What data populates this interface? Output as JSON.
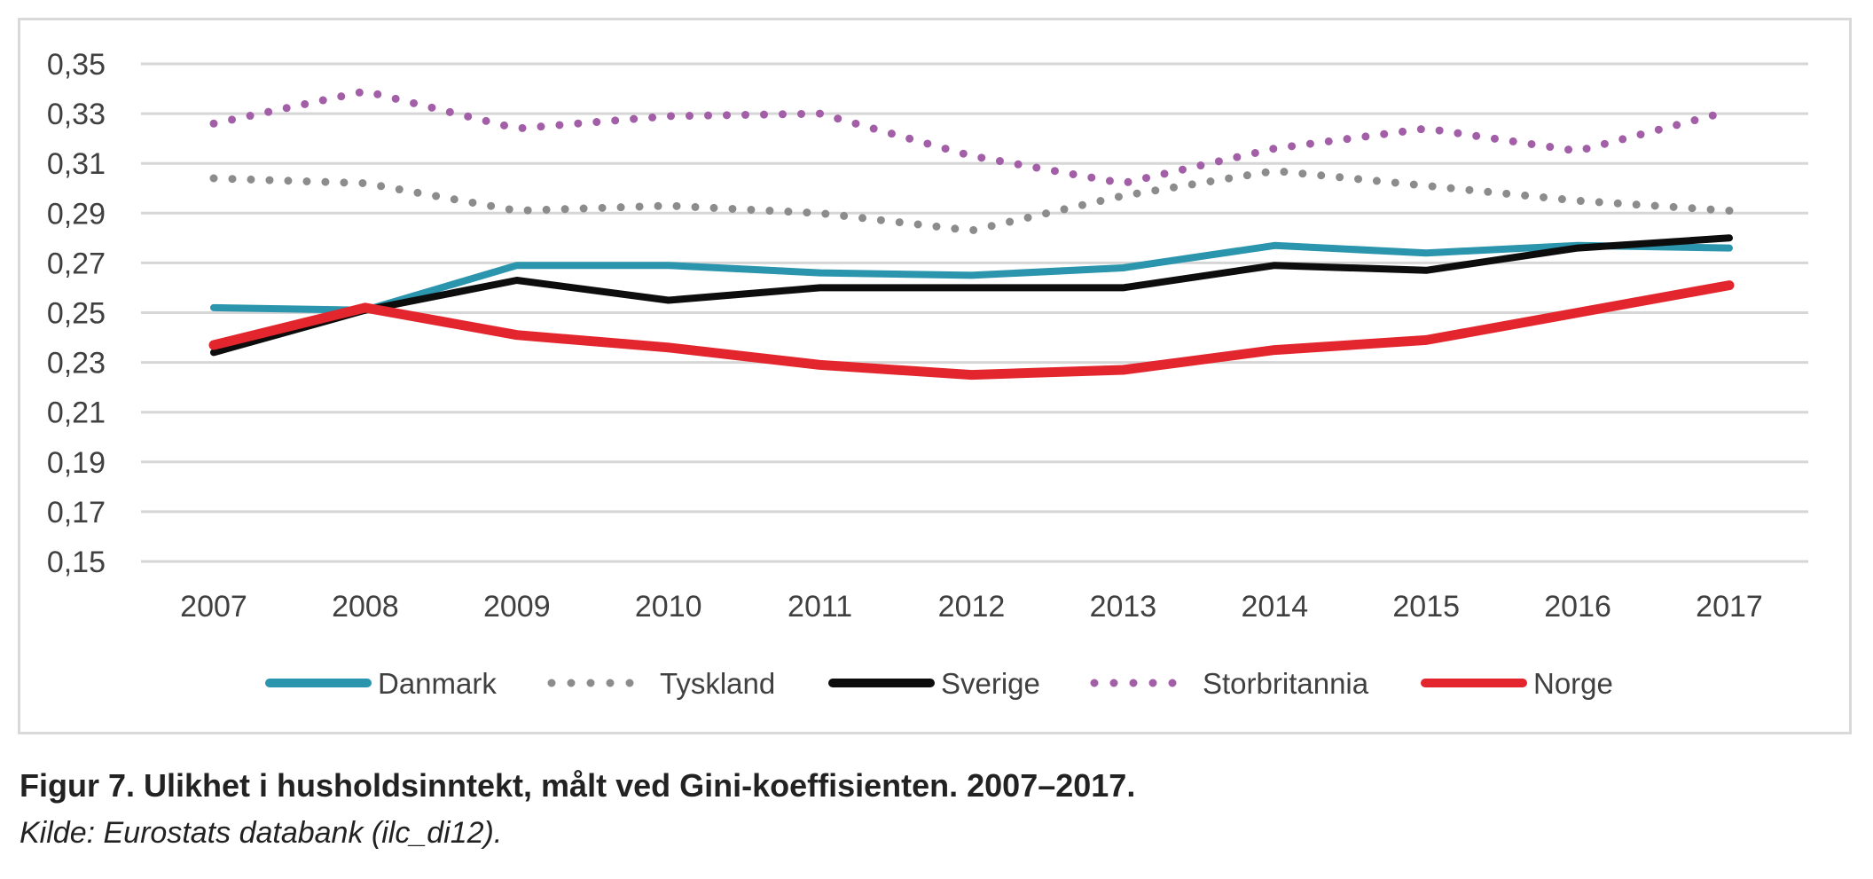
{
  "caption": {
    "title": "Figur 7. Ulikhet i husholdsinntekt, målt ved Gini-koeffisienten. 2007–2017.",
    "source": "Kilde: Eurostats databank (ilc_di12)."
  },
  "chart_data": {
    "type": "line",
    "title": "",
    "xlabel": "",
    "ylabel": "",
    "x": [
      "2007",
      "2008",
      "2009",
      "2010",
      "2011",
      "2012",
      "2013",
      "2014",
      "2015",
      "2016",
      "2017"
    ],
    "ylim": [
      0.15,
      0.35
    ],
    "yticks": [
      0.35,
      0.33,
      0.31,
      0.29,
      0.27,
      0.25,
      0.23,
      0.21,
      0.19,
      0.17,
      0.15
    ],
    "ytick_labels": [
      "0,35",
      "0,33",
      "0,31",
      "0,29",
      "0,27",
      "0,25",
      "0,23",
      "0,21",
      "0,19",
      "0,17",
      "0,15"
    ],
    "grid": true,
    "legend_position": "bottom",
    "series": [
      {
        "name": "Danmark",
        "color": "#2b95ad",
        "style": "solid",
        "values": [
          0.252,
          0.251,
          0.269,
          0.269,
          0.266,
          0.265,
          0.268,
          0.277,
          0.274,
          0.277,
          0.276
        ]
      },
      {
        "name": "Tyskland",
        "color": "#8c8c8c",
        "style": "dotted",
        "values": [
          0.304,
          0.302,
          0.291,
          0.293,
          0.29,
          0.283,
          0.297,
          0.307,
          0.301,
          0.295,
          0.291
        ]
      },
      {
        "name": "Sverige",
        "color": "#0d0d0d",
        "style": "solid",
        "values": [
          0.234,
          0.251,
          0.263,
          0.255,
          0.26,
          0.26,
          0.26,
          0.269,
          0.267,
          0.276,
          0.28
        ]
      },
      {
        "name": "Storbritannia",
        "color": "#a25ea6",
        "style": "dotted",
        "values": [
          0.326,
          0.339,
          0.324,
          0.329,
          0.33,
          0.313,
          0.302,
          0.316,
          0.324,
          0.315,
          0.331
        ]
      },
      {
        "name": "Norge",
        "color": "#e3262d",
        "style": "solid",
        "values": [
          0.237,
          0.252,
          0.241,
          0.236,
          0.229,
          0.225,
          0.227,
          0.235,
          0.239,
          0.25,
          0.261
        ]
      }
    ]
  }
}
